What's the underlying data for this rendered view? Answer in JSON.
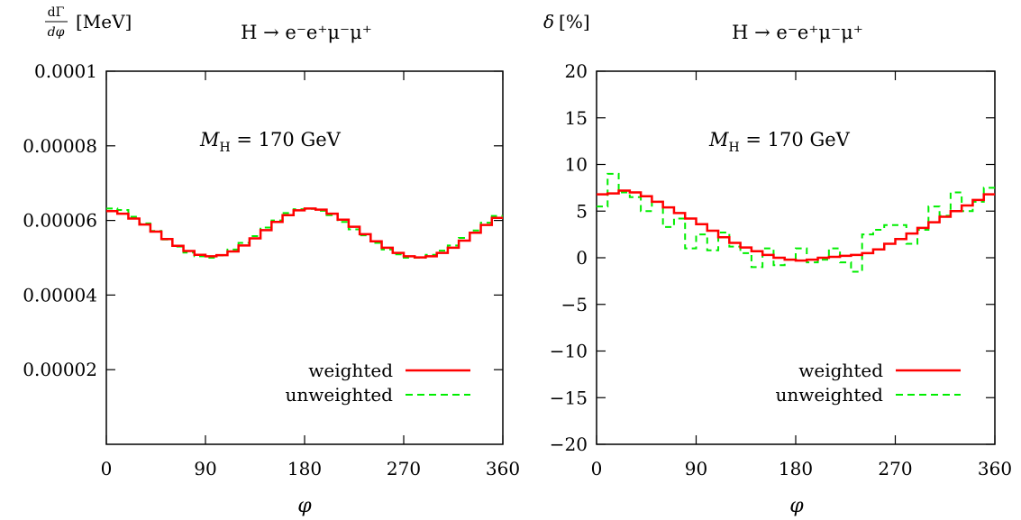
{
  "chart_data": [
    {
      "type": "line",
      "title": "H → e⁻e⁺μ⁻μ⁺",
      "ylabel_frac_num": "dΓ",
      "ylabel_frac_den": "dφ",
      "ylabel_unit": "[MeV]",
      "xlabel": "φ",
      "annotation": "M_H = 170 GeV",
      "annotation_main": "M",
      "annotation_sub": "H",
      "annotation_rest": " = 170 GeV",
      "xlim": [
        0,
        360
      ],
      "ylim": [
        0,
        0.0001
      ],
      "xticks": [
        0,
        90,
        180,
        270,
        360
      ],
      "xtick_labels": [
        "0",
        "90",
        "180",
        "270",
        "360"
      ],
      "yticks": [
        2e-05,
        4e-05,
        6e-05,
        8e-05,
        0.0001
      ],
      "ytick_labels": [
        "0.00002",
        "0.00004",
        "0.00006",
        "0.00008",
        "0.0001"
      ],
      "legend_position": "bottom-right",
      "bin_width": 10,
      "series": [
        {
          "name": "weighted",
          "color": "#ff0000",
          "dash": "solid",
          "values": [
            6.25e-05,
            6.18e-05,
            6.05e-05,
            5.89e-05,
            5.7e-05,
            5.5e-05,
            5.32e-05,
            5.18e-05,
            5.08e-05,
            5.04e-05,
            5.07e-05,
            5.17e-05,
            5.33e-05,
            5.52e-05,
            5.74e-05,
            5.96e-05,
            6.14e-05,
            6.27e-05,
            6.32e-05,
            6.29e-05,
            6.18e-05,
            6.02e-05,
            5.83e-05,
            5.63e-05,
            5.44e-05,
            5.27e-05,
            5.13e-05,
            5.04e-05,
            5.01e-05,
            5.04e-05,
            5.13e-05,
            5.27e-05,
            5.46e-05,
            5.67e-05,
            5.88e-05,
            6.07e-05
          ]
        },
        {
          "name": "unweighted",
          "color": "#00ee00",
          "dash": "dashed",
          "values": [
            6.32e-05,
            6.28e-05,
            6.1e-05,
            5.92e-05,
            5.72e-05,
            5.49e-05,
            5.3e-05,
            5.14e-05,
            5.04e-05,
            5e-05,
            5.06e-05,
            5.22e-05,
            5.4e-05,
            5.58e-05,
            5.81e-05,
            6e-05,
            6.2e-05,
            6.3e-05,
            6.31e-05,
            6.26e-05,
            6.14e-05,
            5.96e-05,
            5.76e-05,
            5.6e-05,
            5.4e-05,
            5.22e-05,
            5.09e-05,
            5e-05,
            5e-05,
            5.08e-05,
            5.19e-05,
            5.33e-05,
            5.53e-05,
            5.73e-05,
            5.94e-05,
            6.12e-05
          ]
        }
      ]
    },
    {
      "type": "line",
      "title": "H → e⁻e⁺μ⁻μ⁺",
      "ylabel": "δ [%]",
      "ylabel_main": "δ",
      "ylabel_unit": "[%]",
      "xlabel": "φ",
      "annotation": "M_H = 170 GeV",
      "annotation_main": "M",
      "annotation_sub": "H",
      "annotation_rest": " = 170 GeV",
      "xlim": [
        0,
        360
      ],
      "ylim": [
        -20,
        20
      ],
      "xticks": [
        0,
        90,
        180,
        270,
        360
      ],
      "xtick_labels": [
        "0",
        "90",
        "180",
        "270",
        "360"
      ],
      "yticks": [
        -20,
        -15,
        -10,
        -5,
        0,
        5,
        10,
        15,
        20
      ],
      "ytick_labels": [
        "−20",
        "−15",
        "−10",
        "−5",
        "0",
        "5",
        "10",
        "15",
        "20"
      ],
      "legend_position": "bottom-right",
      "bin_width": 10,
      "series": [
        {
          "name": "weighted",
          "color": "#ff0000",
          "dash": "solid",
          "values": [
            6.8,
            6.9,
            7.2,
            7.0,
            6.6,
            6.0,
            5.4,
            4.8,
            4.2,
            3.6,
            2.9,
            2.2,
            1.6,
            1.1,
            0.7,
            0.3,
            0.0,
            -0.2,
            -0.3,
            -0.2,
            0.0,
            0.1,
            0.2,
            0.3,
            0.5,
            0.9,
            1.5,
            2.0,
            2.6,
            3.2,
            3.8,
            4.4,
            5.0,
            5.6,
            6.2,
            6.8
          ]
        },
        {
          "name": "unweighted",
          "color": "#00ee00",
          "dash": "dashed",
          "values": [
            5.5,
            9.0,
            7.0,
            6.5,
            5.0,
            6.0,
            3.3,
            4.2,
            1.0,
            2.5,
            0.8,
            2.7,
            1.2,
            0.5,
            -1.0,
            1.0,
            -0.8,
            -0.2,
            1.0,
            -0.5,
            -0.2,
            1.0,
            -0.5,
            -1.5,
            2.5,
            3.0,
            3.5,
            3.5,
            1.5,
            3.0,
            5.5,
            4.5,
            7.0,
            5.0,
            6.0,
            7.5
          ]
        }
      ]
    }
  ]
}
